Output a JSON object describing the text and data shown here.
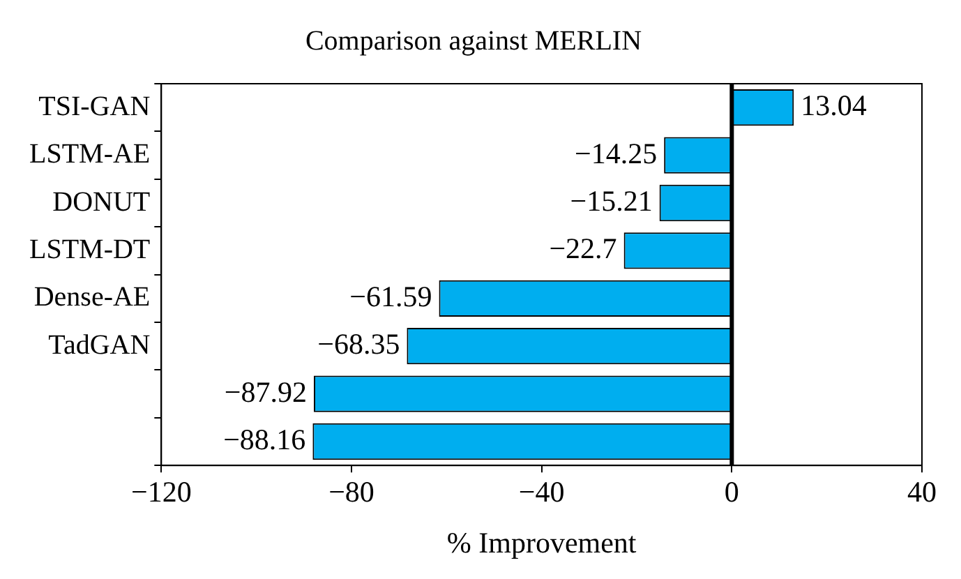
{
  "chart_data": {
    "type": "bar",
    "orientation": "horizontal",
    "title": "Comparison against MERLIN",
    "xlabel": "% Improvement",
    "categories": [
      "TSI-GAN",
      "LSTM-AE",
      "DONUT",
      "LSTM-DT",
      "Dense-AE",
      "TadGAN",
      null,
      null
    ],
    "values": [
      13.04,
      -14.25,
      -15.21,
      -22.7,
      -61.59,
      -68.35,
      -87.92,
      -88.16
    ],
    "color": "#00aeef",
    "xlim": [
      -120,
      40
    ],
    "xticks": [
      -120,
      -80,
      -40,
      0,
      40
    ],
    "ref_lines": [
      {
        "axis": "x",
        "value": 0,
        "color": "#000000"
      }
    ],
    "data_labels": true,
    "grid": false,
    "legend": false
  }
}
